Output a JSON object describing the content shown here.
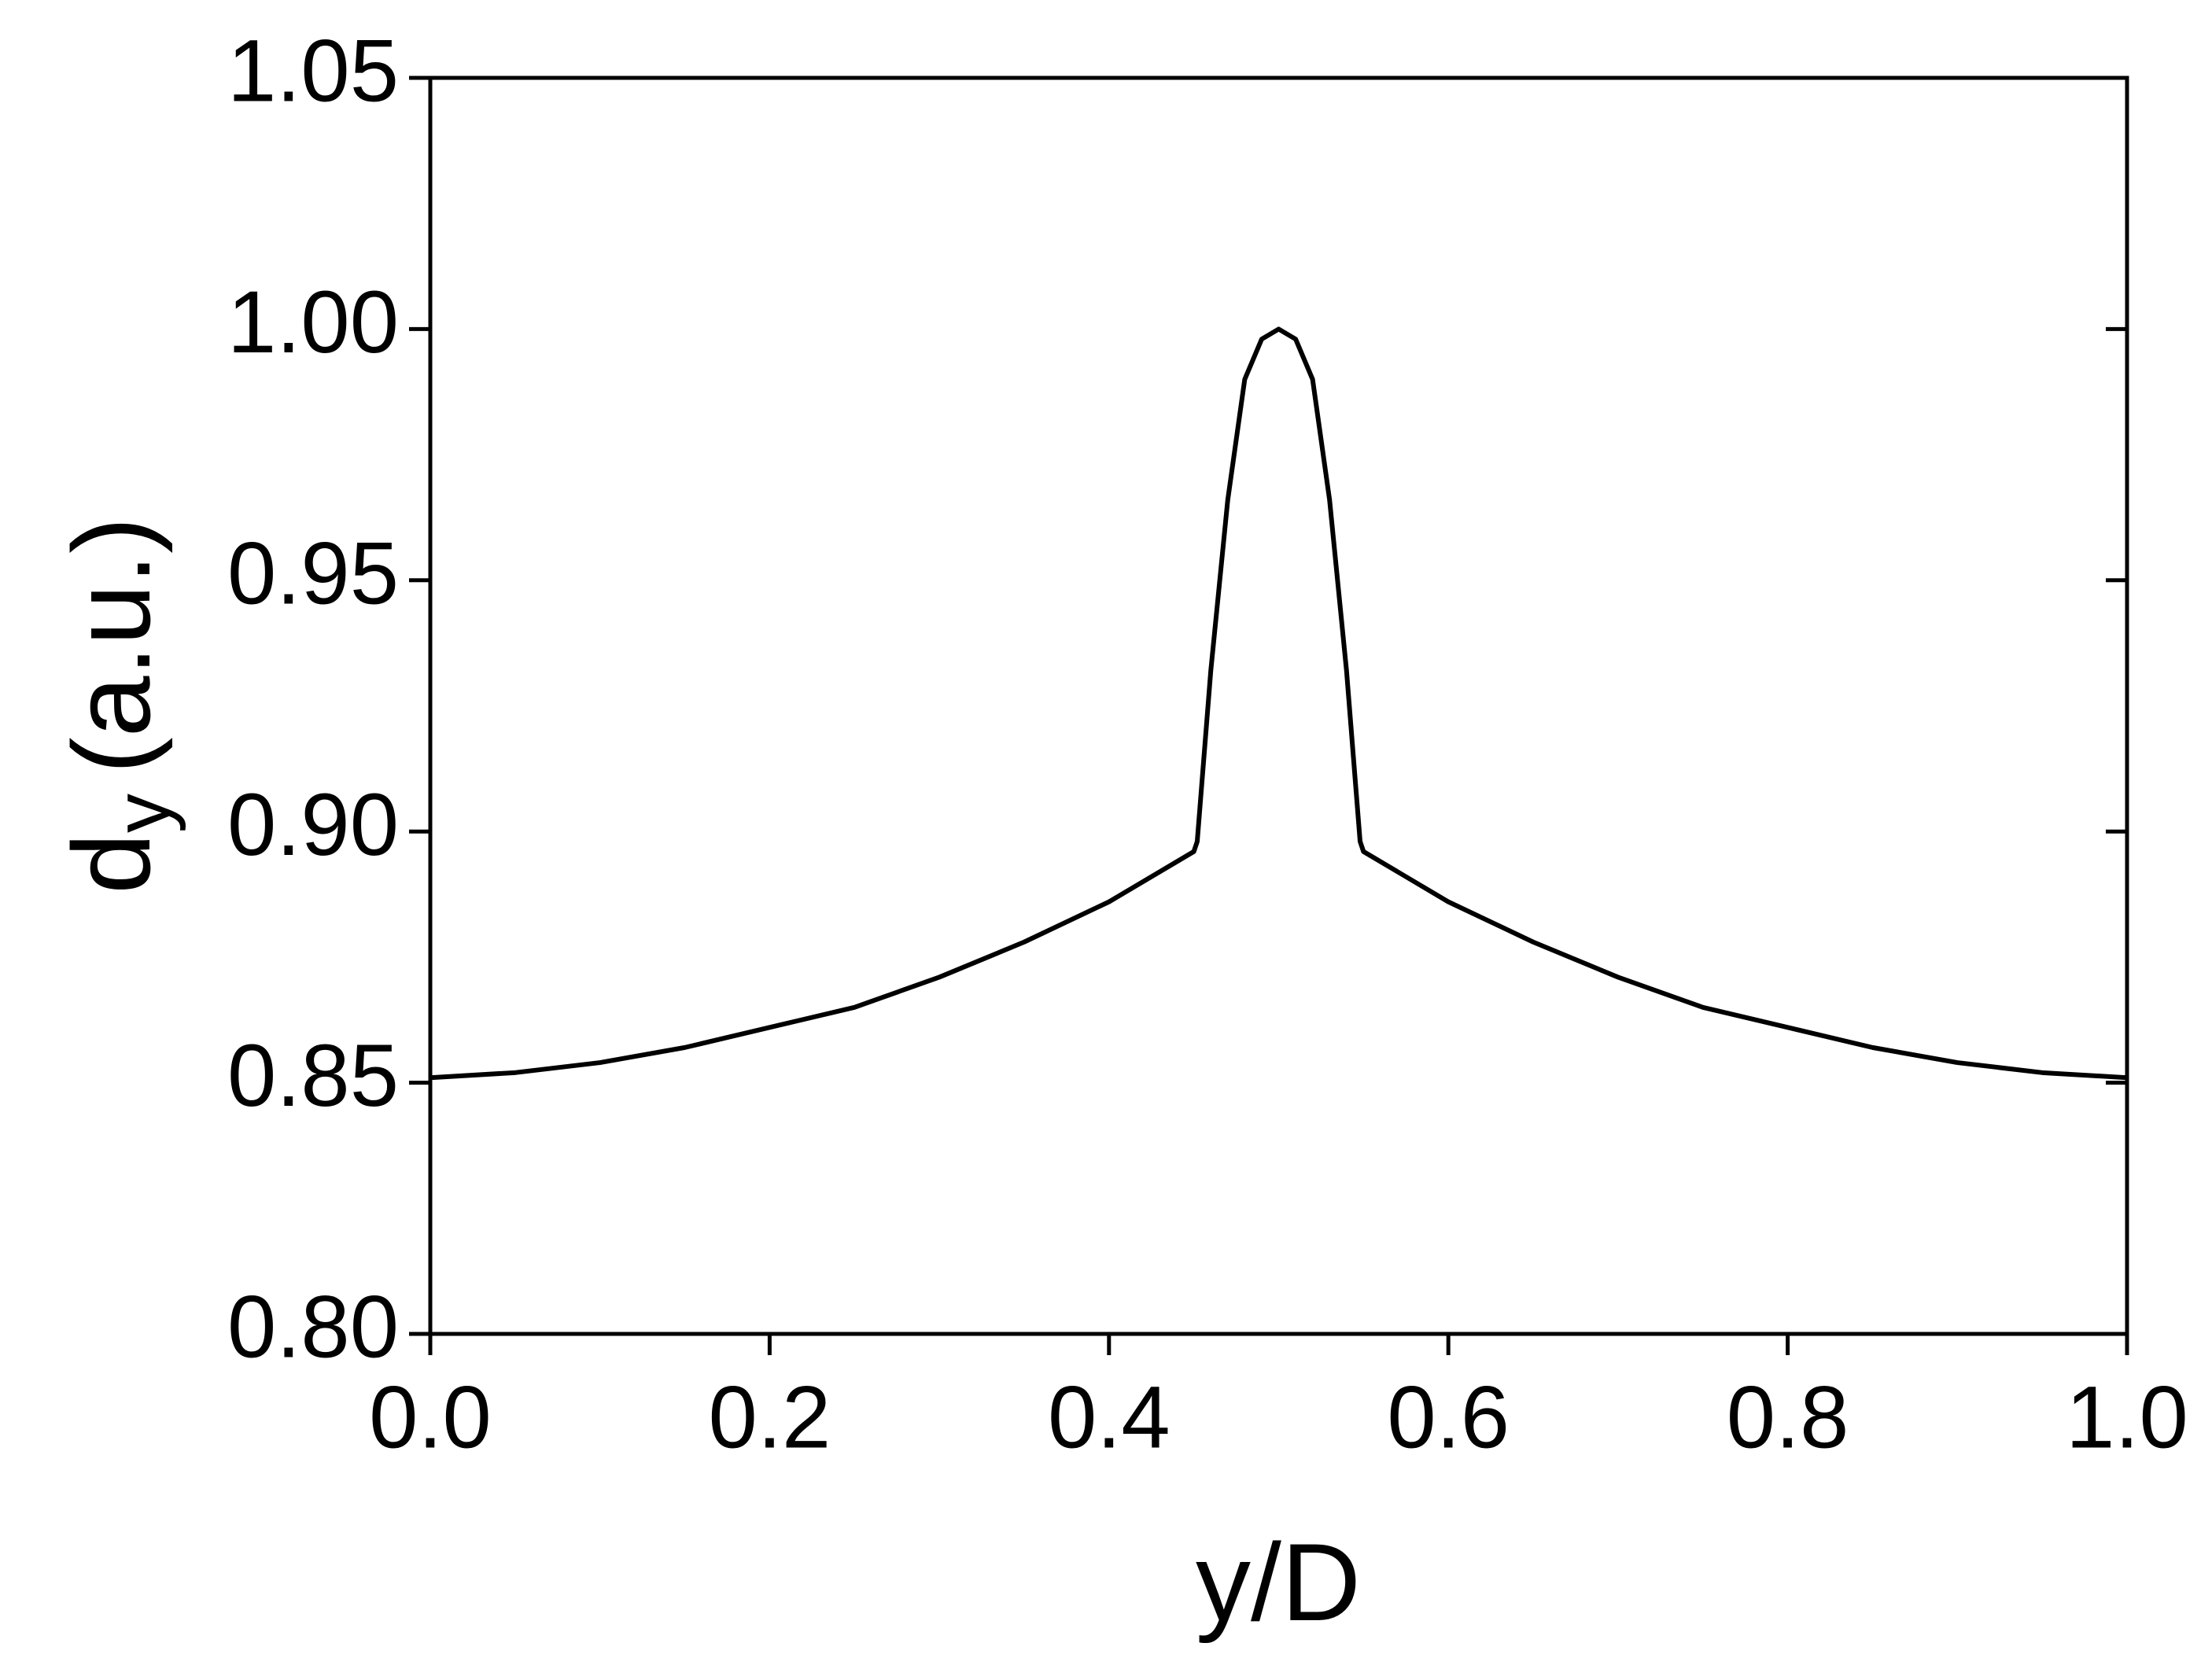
{
  "chart_data": {
    "type": "line",
    "xlabel": "y/D",
    "ylabel": {
      "main": "d",
      "sub": "y",
      "unit": "(a.u.)"
    },
    "x": [
      0,
      0.05,
      0.1,
      0.15,
      0.2,
      0.25,
      0.3,
      0.35,
      0.4,
      0.45,
      0.452,
      0.46,
      0.47,
      0.48,
      0.49,
      0.5,
      0.51,
      0.52,
      0.53,
      0.54,
      0.548,
      0.55,
      0.6,
      0.65,
      0.7,
      0.75,
      0.8,
      0.85,
      0.9,
      0.95,
      1.0
    ],
    "series": [
      {
        "name": "d_y",
        "color": "#000000",
        "values": [
          0.851,
          0.852,
          0.854,
          0.857,
          0.861,
          0.865,
          0.871,
          0.878,
          0.886,
          0.896,
          0.898,
          0.932,
          0.966,
          0.99,
          0.998,
          1.0,
          0.998,
          0.99,
          0.966,
          0.932,
          0.898,
          0.896,
          0.886,
          0.878,
          0.871,
          0.865,
          0.861,
          0.857,
          0.854,
          0.852,
          0.851
        ]
      }
    ],
    "xlim": [
      0,
      1
    ],
    "xticks": [
      {
        "value": 0,
        "label": "0.0"
      },
      {
        "value": 0.2,
        "label": "0.2"
      },
      {
        "value": 0.4,
        "label": "0.4"
      },
      {
        "value": 0.6,
        "label": "0.6"
      },
      {
        "value": 0.8,
        "label": "0.8"
      },
      {
        "value": 1,
        "label": "1.0"
      }
    ],
    "ylim": [
      0.8,
      1.05
    ],
    "yticks": [
      {
        "value": 0.8,
        "label": "0.80"
      },
      {
        "value": 0.85,
        "label": "0.85"
      },
      {
        "value": 0.9,
        "label": "0.90"
      },
      {
        "value": 0.95,
        "label": "0.95"
      },
      {
        "value": 1.0,
        "label": "1.00"
      },
      {
        "value": 1.05,
        "label": "1.05"
      }
    ],
    "grid": false
  }
}
